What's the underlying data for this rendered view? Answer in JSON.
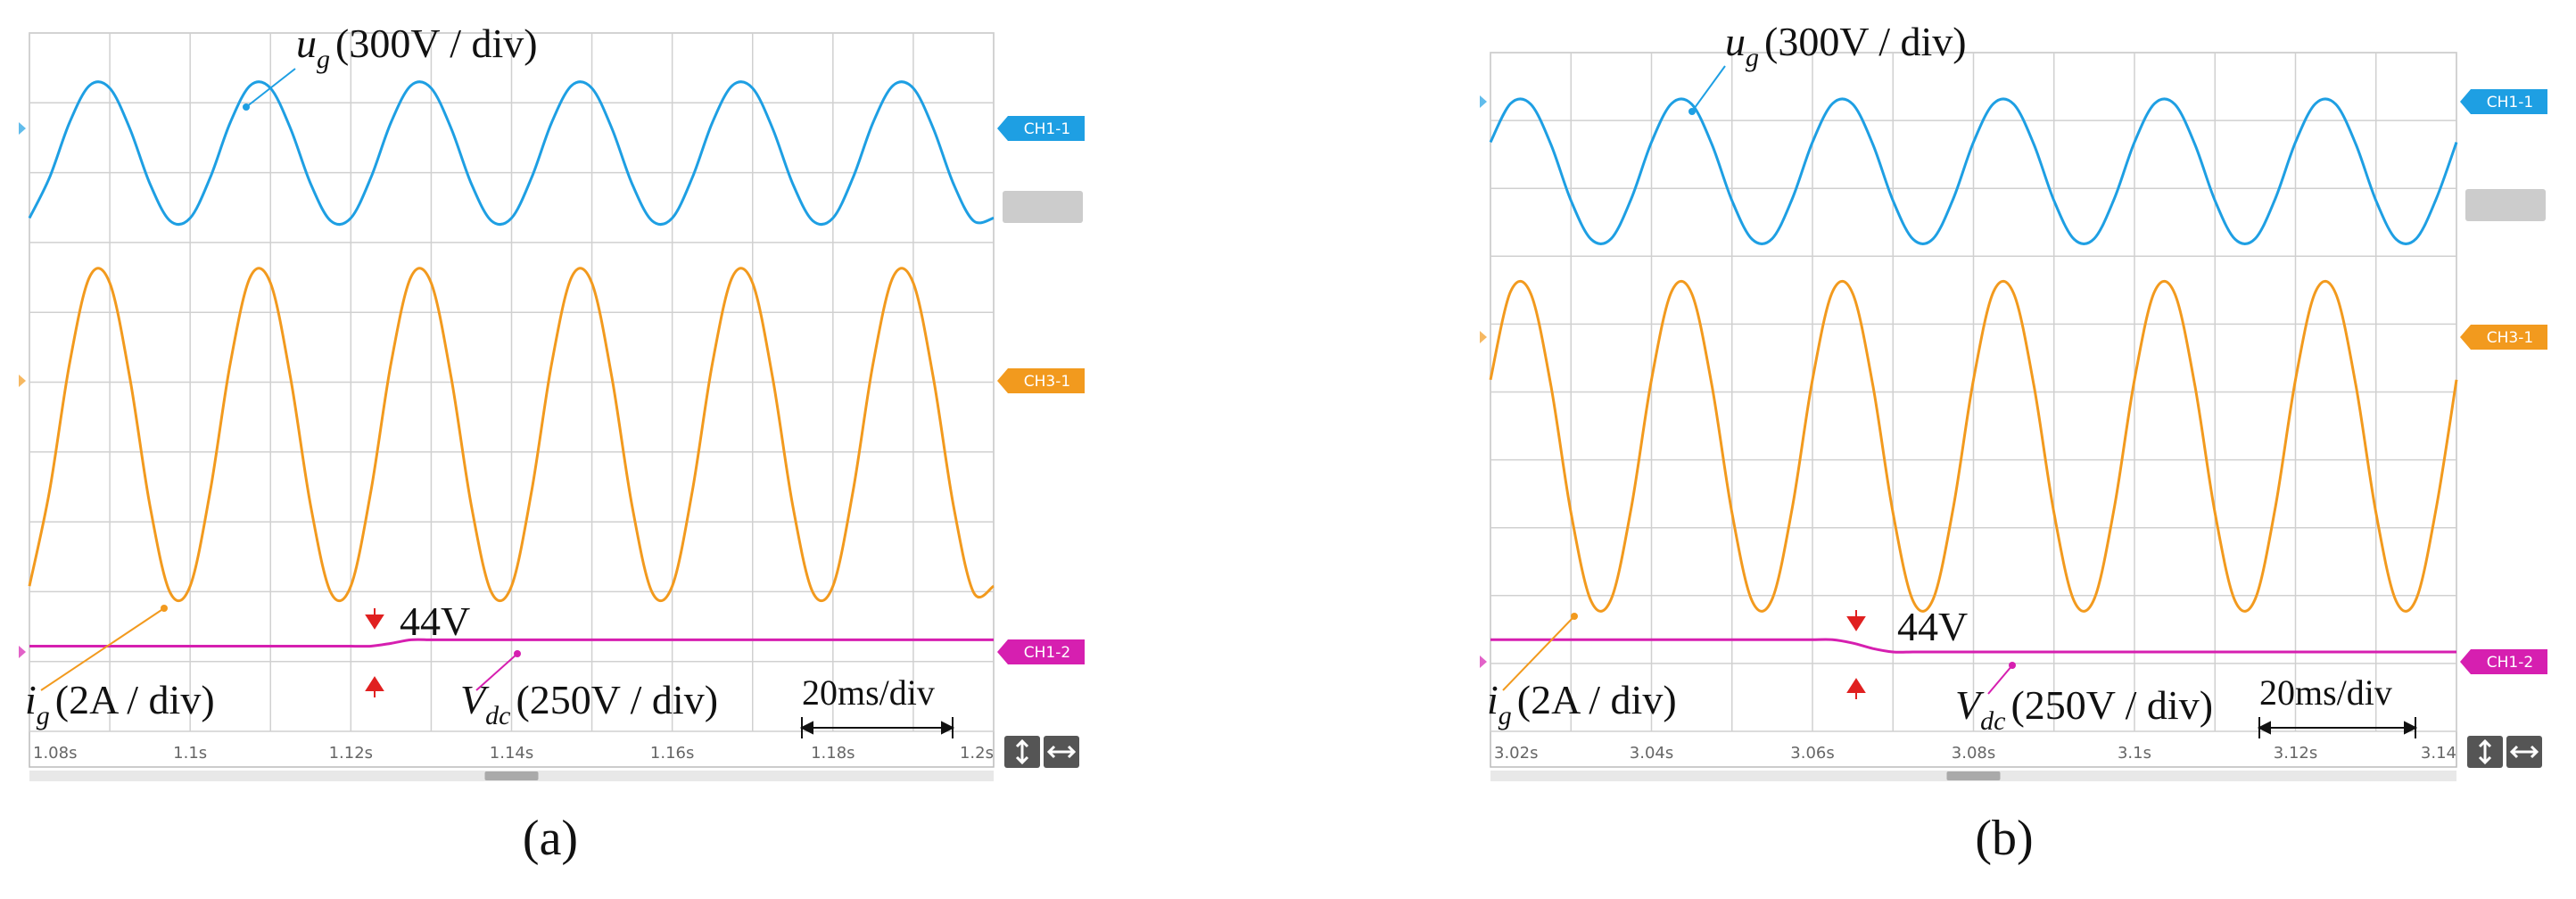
{
  "chart_data": [
    {
      "type": "line",
      "panel_label": "(a)",
      "x": [
        1.08,
        1.0825,
        1.085,
        1.0875,
        1.09,
        1.0925,
        1.095,
        1.0975,
        1.1,
        1.1025,
        1.105,
        1.1075,
        1.11,
        1.1125,
        1.115,
        1.1175,
        1.12,
        1.1225,
        1.125,
        1.1275,
        1.13,
        1.1325,
        1.135,
        1.1375,
        1.14,
        1.1425,
        1.145,
        1.1475,
        1.15,
        1.1525,
        1.155,
        1.1575,
        1.16,
        1.1625,
        1.165,
        1.1675,
        1.17,
        1.1725,
        1.175,
        1.1775,
        1.18,
        1.1825,
        1.185,
        1.1875,
        1.19,
        1.1925,
        1.195,
        1.1975,
        1.2
      ],
      "xlim": [
        1.08,
        1.2
      ],
      "xticks": [
        {
          "value": 1.08,
          "label": "1.08s"
        },
        {
          "value": 1.1,
          "label": "1.1s"
        },
        {
          "value": 1.12,
          "label": "1.12s"
        },
        {
          "value": 1.14,
          "label": "1.14s"
        },
        {
          "value": 1.16,
          "label": "1.16s"
        },
        {
          "value": 1.18,
          "label": "1.18s"
        },
        {
          "value": 1.2,
          "label": "1.2s"
        }
      ],
      "ylim": [
        0,
        10
      ],
      "grid": true,
      "series": [
        {
          "name": "CH1-1",
          "color": "#1e9fe3",
          "values": [
            7.35,
            7.93,
            8.72,
            9.25,
            9.21,
            8.63,
            7.84,
            7.31,
            7.35,
            7.93,
            8.72,
            9.25,
            9.21,
            8.63,
            7.84,
            7.31,
            7.35,
            7.93,
            8.72,
            9.25,
            9.21,
            8.63,
            7.84,
            7.31,
            7.35,
            7.93,
            8.72,
            9.25,
            9.21,
            8.63,
            7.84,
            7.31,
            7.35,
            7.93,
            8.72,
            9.25,
            9.21,
            8.63,
            7.84,
            7.31,
            7.35,
            7.93,
            8.72,
            9.25,
            9.21,
            8.63,
            7.84,
            7.31,
            7.35
          ]
        },
        {
          "name": "CH3-1",
          "color": "#f29a1e",
          "values": [
            2.08,
            3.44,
            5.27,
            6.51,
            6.42,
            5.06,
            3.23,
            1.99,
            2.08,
            3.44,
            5.27,
            6.51,
            6.42,
            5.06,
            3.23,
            1.99,
            2.08,
            3.44,
            5.27,
            6.51,
            6.42,
            5.06,
            3.23,
            1.99,
            2.08,
            3.44,
            5.27,
            6.51,
            6.42,
            5.06,
            3.23,
            1.99,
            2.08,
            3.44,
            5.27,
            6.51,
            6.42,
            5.06,
            3.23,
            1.99,
            2.08,
            3.44,
            5.27,
            6.51,
            6.42,
            5.06,
            3.23,
            1.99,
            2.08
          ]
        },
        {
          "name": "CH1-2",
          "color": "#d61fb0",
          "values": [
            1.22,
            1.22,
            1.22,
            1.22,
            1.22,
            1.22,
            1.22,
            1.22,
            1.22,
            1.22,
            1.22,
            1.22,
            1.22,
            1.22,
            1.22,
            1.22,
            1.22,
            1.22,
            1.26,
            1.31,
            1.31,
            1.31,
            1.31,
            1.31,
            1.31,
            1.31,
            1.31,
            1.31,
            1.31,
            1.31,
            1.31,
            1.31,
            1.31,
            1.31,
            1.31,
            1.31,
            1.31,
            1.31,
            1.31,
            1.31,
            1.31,
            1.31,
            1.31,
            1.31,
            1.31,
            1.31,
            1.31,
            1.31,
            1.31
          ]
        }
      ],
      "annotations": [
        {
          "symbol": "u",
          "subscript": "g",
          "text": "(300V / div)"
        },
        {
          "symbol": "i",
          "subscript": "g",
          "text": "(2A / div)"
        },
        {
          "symbol": "V",
          "subscript": "dc",
          "text": "(250V / div)"
        },
        {
          "text": "44V"
        },
        {
          "text": "20ms/div"
        }
      ]
    },
    {
      "type": "line",
      "panel_label": "(b)",
      "x": [
        3.02,
        3.0225,
        3.025,
        3.0275,
        3.03,
        3.0325,
        3.035,
        3.0375,
        3.04,
        3.0425,
        3.045,
        3.0475,
        3.05,
        3.0525,
        3.055,
        3.0575,
        3.06,
        3.0625,
        3.065,
        3.0675,
        3.07,
        3.0725,
        3.075,
        3.0775,
        3.08,
        3.0825,
        3.085,
        3.0875,
        3.09,
        3.0925,
        3.095,
        3.0975,
        3.1,
        3.1025,
        3.105,
        3.1075,
        3.11,
        3.1125,
        3.115,
        3.1175,
        3.12,
        3.1225,
        3.125,
        3.1275,
        3.13,
        3.1325,
        3.135,
        3.1375,
        3.14
      ],
      "xlim": [
        3.02,
        3.14
      ],
      "xticks": [
        {
          "value": 3.02,
          "label": "3.02s"
        },
        {
          "value": 3.04,
          "label": "3.04s"
        },
        {
          "value": 3.06,
          "label": "3.06s"
        },
        {
          "value": 3.08,
          "label": "3.08s"
        },
        {
          "value": 3.1,
          "label": "3.1s"
        },
        {
          "value": 3.12,
          "label": "3.12s"
        },
        {
          "value": 3.14,
          "label": "3.14"
        }
      ],
      "ylim": [
        0,
        10
      ],
      "grid": true,
      "series": [
        {
          "name": "CH1-1",
          "color": "#1e9fe3",
          "values": [
            8.68,
            9.25,
            9.24,
            8.65,
            7.82,
            7.25,
            7.26,
            7.85,
            8.68,
            9.25,
            9.24,
            8.65,
            7.82,
            7.25,
            7.26,
            7.85,
            8.68,
            9.25,
            9.24,
            8.65,
            7.82,
            7.25,
            7.26,
            7.85,
            8.68,
            9.25,
            9.24,
            8.65,
            7.82,
            7.25,
            7.26,
            7.85,
            8.68,
            9.25,
            9.24,
            8.65,
            7.82,
            7.25,
            7.26,
            7.85,
            8.68,
            9.25,
            9.24,
            8.65,
            7.82,
            7.25,
            7.26,
            7.85,
            8.68
          ]
        },
        {
          "name": "CH3-1",
          "color": "#f29a1e",
          "values": [
            5.18,
            6.48,
            6.45,
            5.1,
            3.22,
            1.92,
            1.95,
            3.3,
            5.18,
            6.48,
            6.45,
            5.1,
            3.22,
            1.92,
            1.95,
            3.3,
            5.18,
            6.48,
            6.45,
            5.1,
            3.22,
            1.92,
            1.95,
            3.3,
            5.18,
            6.48,
            6.45,
            5.1,
            3.22,
            1.92,
            1.95,
            3.3,
            5.18,
            6.48,
            6.45,
            5.1,
            3.22,
            1.92,
            1.95,
            3.3,
            5.18,
            6.48,
            6.45,
            5.1,
            3.22,
            1.92,
            1.95,
            3.3,
            5.18
          ]
        },
        {
          "name": "CH1-2",
          "color": "#d61fb0",
          "values": [
            1.35,
            1.35,
            1.35,
            1.35,
            1.35,
            1.35,
            1.35,
            1.35,
            1.35,
            1.35,
            1.35,
            1.35,
            1.35,
            1.35,
            1.35,
            1.35,
            1.35,
            1.35,
            1.3,
            1.22,
            1.17,
            1.17,
            1.17,
            1.17,
            1.17,
            1.17,
            1.17,
            1.17,
            1.17,
            1.17,
            1.17,
            1.17,
            1.17,
            1.17,
            1.17,
            1.17,
            1.17,
            1.17,
            1.17,
            1.17,
            1.17,
            1.17,
            1.17,
            1.17,
            1.17,
            1.17,
            1.17,
            1.17,
            1.17
          ]
        }
      ],
      "annotations": [
        {
          "symbol": "u",
          "subscript": "g",
          "text": "(300V / div)"
        },
        {
          "symbol": "i",
          "subscript": "g",
          "text": "(2A / div)"
        },
        {
          "symbol": "V",
          "subscript": "dc",
          "text": "(250V / div)"
        },
        {
          "text": "44V"
        },
        {
          "text": "20ms/div"
        }
      ]
    }
  ]
}
